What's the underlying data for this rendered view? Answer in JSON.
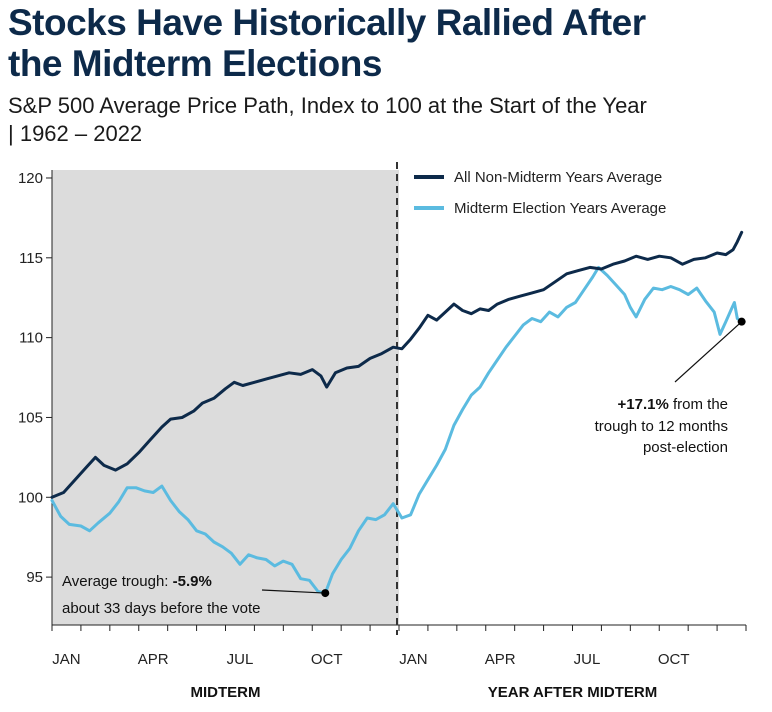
{
  "title_line1": "Stocks Have Historically Rallied After",
  "title_line2": "the Midterm Elections",
  "subtitle_line1": "S&P 500 Average Price Path, Index to 100 at the Start of the Year",
  "subtitle_line2": "| 1962 – 2022",
  "colors": {
    "non_midterm": "#0d2a4a",
    "midterm": "#5bbbe0",
    "shade": "#dcdcdc",
    "divider": "#333333"
  },
  "chart_data": {
    "type": "line",
    "ylim": [
      92,
      120.5
    ],
    "yticks": [
      95,
      100,
      105,
      110,
      115,
      120
    ],
    "x_range_months": [
      0,
      24
    ],
    "month_ticks": [
      {
        "label": "JAN",
        "month": 0.5
      },
      {
        "label": "APR",
        "month": 3.5
      },
      {
        "label": "JUL",
        "month": 6.5
      },
      {
        "label": "OCT",
        "month": 9.5
      },
      {
        "label": "JAN",
        "month": 12.5
      },
      {
        "label": "APR",
        "month": 15.5
      },
      {
        "label": "JUL",
        "month": 18.5
      },
      {
        "label": "OCT",
        "month": 21.5
      }
    ],
    "sections": [
      "MIDTERM",
      "YEAR AFTER MIDTERM"
    ],
    "shaded_range_months": [
      0,
      12
    ],
    "legend_position": "top-right",
    "series": [
      {
        "name": "All Non-Midterm Years Average",
        "color_key": "non_midterm",
        "points": [
          [
            0,
            100.0
          ],
          [
            0.4,
            100.3
          ],
          [
            0.8,
            101.1
          ],
          [
            1.2,
            101.9
          ],
          [
            1.5,
            102.5
          ],
          [
            1.8,
            102.0
          ],
          [
            2.2,
            101.7
          ],
          [
            2.6,
            102.1
          ],
          [
            3.0,
            102.8
          ],
          [
            3.4,
            103.6
          ],
          [
            3.8,
            104.4
          ],
          [
            4.1,
            104.9
          ],
          [
            4.5,
            105.0
          ],
          [
            4.9,
            105.4
          ],
          [
            5.2,
            105.9
          ],
          [
            5.6,
            106.2
          ],
          [
            6.0,
            106.8
          ],
          [
            6.3,
            107.2
          ],
          [
            6.6,
            107.0
          ],
          [
            7.0,
            107.2
          ],
          [
            7.4,
            107.4
          ],
          [
            7.8,
            107.6
          ],
          [
            8.2,
            107.8
          ],
          [
            8.6,
            107.7
          ],
          [
            9.0,
            108.0
          ],
          [
            9.3,
            107.6
          ],
          [
            9.5,
            106.9
          ],
          [
            9.8,
            107.8
          ],
          [
            10.2,
            108.1
          ],
          [
            10.6,
            108.2
          ],
          [
            11.0,
            108.7
          ],
          [
            11.4,
            109.0
          ],
          [
            11.8,
            109.4
          ],
          [
            12.1,
            109.3
          ],
          [
            12.4,
            109.9
          ],
          [
            12.7,
            110.6
          ],
          [
            13.0,
            111.4
          ],
          [
            13.3,
            111.1
          ],
          [
            13.6,
            111.6
          ],
          [
            13.9,
            112.1
          ],
          [
            14.2,
            111.7
          ],
          [
            14.5,
            111.5
          ],
          [
            14.8,
            111.8
          ],
          [
            15.1,
            111.7
          ],
          [
            15.4,
            112.1
          ],
          [
            15.8,
            112.4
          ],
          [
            16.2,
            112.6
          ],
          [
            16.6,
            112.8
          ],
          [
            17.0,
            113.0
          ],
          [
            17.4,
            113.5
          ],
          [
            17.8,
            114.0
          ],
          [
            18.2,
            114.2
          ],
          [
            18.6,
            114.4
          ],
          [
            19.0,
            114.3
          ],
          [
            19.4,
            114.6
          ],
          [
            19.8,
            114.8
          ],
          [
            20.2,
            115.1
          ],
          [
            20.6,
            114.9
          ],
          [
            21.0,
            115.1
          ],
          [
            21.4,
            115.0
          ],
          [
            21.8,
            114.6
          ],
          [
            22.2,
            114.9
          ],
          [
            22.6,
            115.0
          ],
          [
            23.0,
            115.3
          ],
          [
            23.3,
            115.2
          ],
          [
            23.55,
            115.5
          ],
          [
            23.7,
            116.0
          ],
          [
            23.85,
            116.6
          ]
        ]
      },
      {
        "name": "Midterm Election Years Average",
        "color_key": "midterm",
        "points": [
          [
            0,
            99.8
          ],
          [
            0.3,
            98.8
          ],
          [
            0.6,
            98.3
          ],
          [
            1.0,
            98.2
          ],
          [
            1.3,
            97.9
          ],
          [
            1.6,
            98.4
          ],
          [
            2.0,
            99.0
          ],
          [
            2.3,
            99.7
          ],
          [
            2.6,
            100.6
          ],
          [
            2.9,
            100.6
          ],
          [
            3.2,
            100.4
          ],
          [
            3.5,
            100.3
          ],
          [
            3.8,
            100.7
          ],
          [
            4.1,
            99.8
          ],
          [
            4.4,
            99.1
          ],
          [
            4.7,
            98.6
          ],
          [
            5.0,
            97.9
          ],
          [
            5.3,
            97.7
          ],
          [
            5.6,
            97.2
          ],
          [
            5.9,
            96.9
          ],
          [
            6.2,
            96.5
          ],
          [
            6.5,
            95.8
          ],
          [
            6.8,
            96.4
          ],
          [
            7.1,
            96.2
          ],
          [
            7.4,
            96.1
          ],
          [
            7.7,
            95.7
          ],
          [
            8.0,
            96.0
          ],
          [
            8.3,
            95.8
          ],
          [
            8.6,
            94.9
          ],
          [
            8.9,
            94.8
          ],
          [
            9.2,
            94.1
          ],
          [
            9.45,
            94.0
          ],
          [
            9.7,
            95.2
          ],
          [
            10.0,
            96.1
          ],
          [
            10.3,
            96.8
          ],
          [
            10.6,
            97.9
          ],
          [
            10.9,
            98.7
          ],
          [
            11.2,
            98.6
          ],
          [
            11.5,
            98.9
          ],
          [
            11.8,
            99.6
          ],
          [
            12.1,
            98.7
          ],
          [
            12.4,
            98.9
          ],
          [
            12.7,
            100.2
          ],
          [
            13.0,
            101.1
          ],
          [
            13.3,
            102.0
          ],
          [
            13.6,
            103.0
          ],
          [
            13.9,
            104.5
          ],
          [
            14.2,
            105.5
          ],
          [
            14.5,
            106.4
          ],
          [
            14.8,
            106.9
          ],
          [
            15.1,
            107.8
          ],
          [
            15.4,
            108.6
          ],
          [
            15.7,
            109.4
          ],
          [
            16.0,
            110.1
          ],
          [
            16.3,
            110.8
          ],
          [
            16.6,
            111.2
          ],
          [
            16.9,
            111.0
          ],
          [
            17.2,
            111.6
          ],
          [
            17.5,
            111.3
          ],
          [
            17.8,
            111.9
          ],
          [
            18.1,
            112.2
          ],
          [
            18.4,
            113.0
          ],
          [
            18.7,
            113.8
          ],
          [
            18.9,
            114.4
          ],
          [
            19.2,
            113.9
          ],
          [
            19.5,
            113.3
          ],
          [
            19.8,
            112.7
          ],
          [
            20.0,
            111.9
          ],
          [
            20.2,
            111.3
          ],
          [
            20.5,
            112.4
          ],
          [
            20.8,
            113.1
          ],
          [
            21.1,
            113.0
          ],
          [
            21.4,
            113.2
          ],
          [
            21.7,
            113.0
          ],
          [
            22.0,
            112.7
          ],
          [
            22.3,
            113.1
          ],
          [
            22.6,
            112.3
          ],
          [
            22.9,
            111.6
          ],
          [
            23.1,
            110.2
          ],
          [
            23.3,
            111.0
          ],
          [
            23.5,
            111.8
          ],
          [
            23.6,
            112.2
          ],
          [
            23.7,
            111.2
          ],
          [
            23.85,
            111.0
          ]
        ]
      }
    ],
    "annotations": {
      "trough": {
        "point": [
          9.45,
          94.0
        ],
        "line1_prefix": "Average trough: ",
        "line1_value": "-5.9%",
        "line2": "about 33 days before the vote"
      },
      "rally": {
        "point": [
          23.85,
          111.0
        ],
        "line1_value": "+17.1%",
        "line1_suffix": " from the",
        "line2": "trough to 12 months",
        "line3": "post-election"
      }
    }
  }
}
